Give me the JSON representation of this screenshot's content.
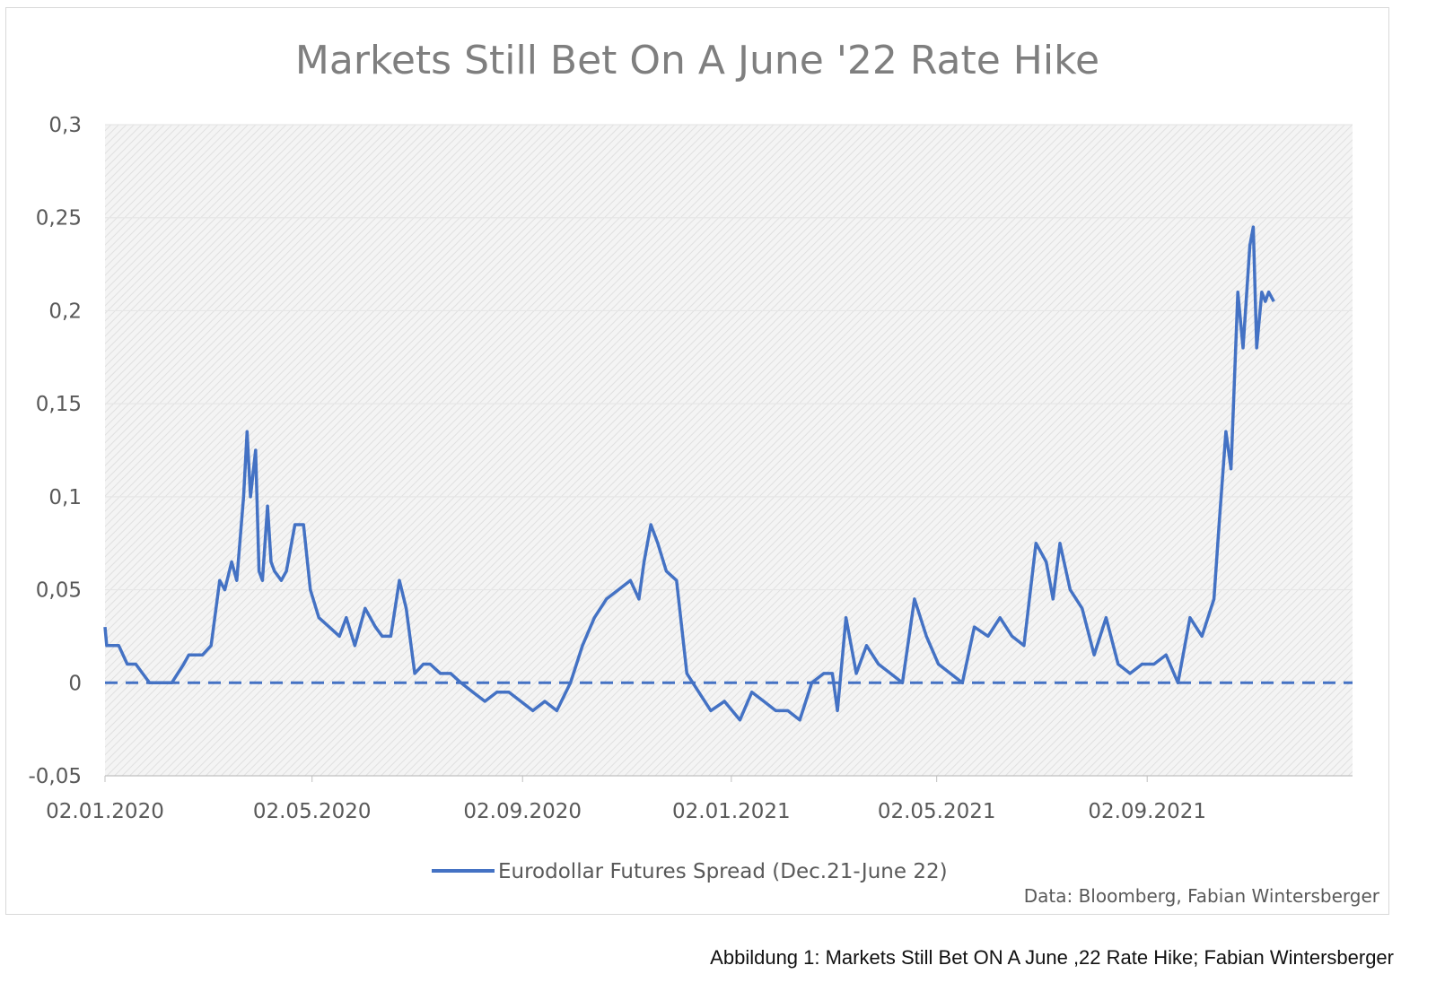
{
  "caption": "Abbildung 1: Markets Still Bet ON A June ,22 Rate Hike; Fabian Wintersberger",
  "chart_data": {
    "type": "line",
    "title": "Markets Still Bet On A June '22 Rate Hike",
    "source": "Data: Bloomberg, Fabian Wintersberger",
    "ylim": [
      -0.05,
      0.3
    ],
    "y_ticks": [
      "0,3",
      "0,25",
      "0,2",
      "0,15",
      "0,1",
      "0,05",
      "0",
      "-0,05"
    ],
    "y_tick_values": [
      0.3,
      0.25,
      0.2,
      0.15,
      0.1,
      0.05,
      0,
      -0.05
    ],
    "xlim": [
      "2020-01-02",
      "2021-12-31"
    ],
    "x_ticks": [
      "02.01.2020",
      "02.05.2020",
      "02.09.2020",
      "02.01.2021",
      "02.05.2021",
      "02.09.2021"
    ],
    "x_tick_dates": [
      "2020-01-02",
      "2020-05-02",
      "2020-09-02",
      "2021-01-02",
      "2021-05-02",
      "2021-09-02"
    ],
    "grid": true,
    "legend_position": "bottom",
    "reference_line": {
      "y": 0,
      "style": "dashed",
      "color": "#4472c4"
    },
    "series": [
      {
        "name": "Eurodollar Futures Spread (Dec.21-June 22)",
        "color": "#4472c4",
        "x": [
          "2020-01-02",
          "2020-01-03",
          "2020-01-06",
          "2020-01-10",
          "2020-01-15",
          "2020-01-20",
          "2020-01-24",
          "2020-01-28",
          "2020-02-03",
          "2020-02-10",
          "2020-02-17",
          "2020-02-20",
          "2020-02-24",
          "2020-02-28",
          "2020-03-04",
          "2020-03-09",
          "2020-03-12",
          "2020-03-16",
          "2020-03-19",
          "2020-03-23",
          "2020-03-25",
          "2020-03-27",
          "2020-03-30",
          "2020-04-01",
          "2020-04-03",
          "2020-04-06",
          "2020-04-08",
          "2020-04-10",
          "2020-04-14",
          "2020-04-17",
          "2020-04-22",
          "2020-04-27",
          "2020-05-01",
          "2020-05-06",
          "2020-05-12",
          "2020-05-18",
          "2020-05-22",
          "2020-05-27",
          "2020-06-02",
          "2020-06-08",
          "2020-06-12",
          "2020-06-17",
          "2020-06-22",
          "2020-06-26",
          "2020-07-01",
          "2020-07-06",
          "2020-07-10",
          "2020-07-16",
          "2020-07-22",
          "2020-07-28",
          "2020-08-04",
          "2020-08-11",
          "2020-08-18",
          "2020-08-25",
          "2020-09-01",
          "2020-09-08",
          "2020-09-15",
          "2020-09-22",
          "2020-09-30",
          "2020-10-07",
          "2020-10-14",
          "2020-10-21",
          "2020-10-28",
          "2020-11-04",
          "2020-11-09",
          "2020-11-12",
          "2020-11-16",
          "2020-11-20",
          "2020-11-25",
          "2020-12-01",
          "2020-12-07",
          "2020-12-14",
          "2020-12-21",
          "2020-12-29",
          "2021-01-07",
          "2021-01-14",
          "2021-01-21",
          "2021-01-28",
          "2021-02-04",
          "2021-02-11",
          "2021-02-18",
          "2021-02-25",
          "2021-03-02",
          "2021-03-05",
          "2021-03-10",
          "2021-03-16",
          "2021-03-22",
          "2021-03-29",
          "2021-04-05",
          "2021-04-12",
          "2021-04-19",
          "2021-04-26",
          "2021-05-03",
          "2021-05-10",
          "2021-05-17",
          "2021-05-24",
          "2021-06-01",
          "2021-06-08",
          "2021-06-15",
          "2021-06-22",
          "2021-06-29",
          "2021-07-05",
          "2021-07-09",
          "2021-07-13",
          "2021-07-19",
          "2021-07-26",
          "2021-08-02",
          "2021-08-09",
          "2021-08-16",
          "2021-08-23",
          "2021-08-30",
          "2021-09-06",
          "2021-09-13",
          "2021-09-20",
          "2021-09-27",
          "2021-10-04",
          "2021-10-11",
          "2021-10-14",
          "2021-10-18",
          "2021-10-21",
          "2021-10-25",
          "2021-10-28",
          "2021-11-01",
          "2021-11-03",
          "2021-11-05",
          "2021-11-08",
          "2021-11-10",
          "2021-11-12",
          "2021-11-15"
        ],
        "y": [
          0.03,
          0.02,
          0.02,
          0.02,
          0.01,
          0.01,
          0.005,
          0.0,
          0.0,
          0.0,
          0.01,
          0.015,
          0.015,
          0.015,
          0.02,
          0.055,
          0.05,
          0.065,
          0.055,
          0.1,
          0.135,
          0.1,
          0.125,
          0.06,
          0.055,
          0.095,
          0.065,
          0.06,
          0.055,
          0.06,
          0.085,
          0.085,
          0.05,
          0.035,
          0.03,
          0.025,
          0.035,
          0.02,
          0.04,
          0.03,
          0.025,
          0.025,
          0.055,
          0.04,
          0.005,
          0.01,
          0.01,
          0.005,
          0.005,
          0.0,
          -0.005,
          -0.01,
          -0.005,
          -0.005,
          -0.01,
          -0.015,
          -0.01,
          -0.015,
          0.0,
          0.02,
          0.035,
          0.045,
          0.05,
          0.055,
          0.045,
          0.065,
          0.085,
          0.075,
          0.06,
          0.055,
          0.005,
          -0.005,
          -0.015,
          -0.01,
          -0.02,
          -0.005,
          -0.01,
          -0.015,
          -0.015,
          -0.02,
          0.0,
          0.005,
          0.005,
          -0.015,
          0.035,
          0.005,
          0.02,
          0.01,
          0.005,
          0.0,
          0.045,
          0.025,
          0.01,
          0.005,
          0.0,
          0.03,
          0.025,
          0.035,
          0.025,
          0.02,
          0.075,
          0.065,
          0.045,
          0.075,
          0.05,
          0.04,
          0.015,
          0.035,
          0.01,
          0.005,
          0.01,
          0.01,
          0.015,
          0.0,
          0.035,
          0.025,
          0.045,
          0.085,
          0.135,
          0.115,
          0.21,
          0.18,
          0.235,
          0.245,
          0.18,
          0.21,
          0.205,
          0.21,
          0.205
        ]
      }
    ]
  }
}
